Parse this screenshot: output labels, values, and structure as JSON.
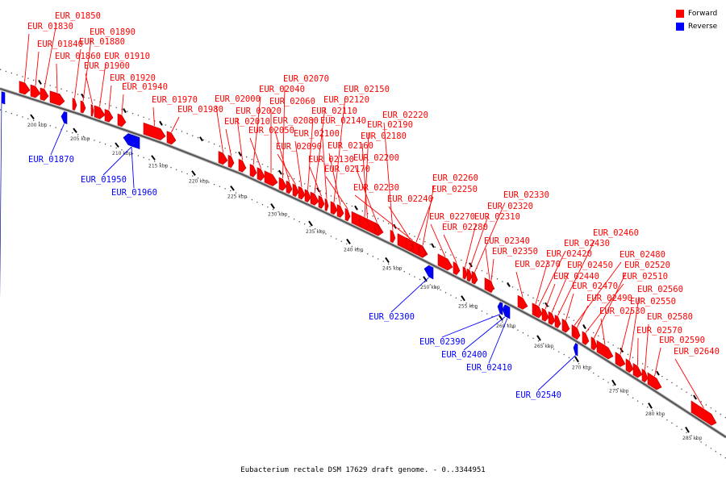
{
  "caption": "Eubacterium rectale DSM 17629 draft genome. - 0..3344951",
  "legend": [
    {
      "label": "Forward",
      "color": "#ff0000"
    },
    {
      "label": "Reverse",
      "color": "#0000ff"
    }
  ],
  "colors": {
    "forward": "#ff0000",
    "reverse": "#0000ff",
    "backbone": "#555555"
  },
  "ticks": [
    "200 kbp",
    "205 kbp",
    "210 kbp",
    "215 kbp",
    "220 kbp",
    "225 kbp",
    "230 kbp",
    "235 kbp",
    "240 kbp",
    "245 kbp",
    "250 kbp",
    "255 kbp",
    "260 kbp",
    "265 kbp",
    "270 kbp",
    "275 kbp",
    "280 kbp",
    "285 kbp"
  ],
  "forward_genes": [
    "EUR_01830",
    "EUR_01840",
    "EUR_01850",
    "EUR_01860",
    "EUR_01880",
    "EUR_01890",
    "EUR_01900",
    "EUR_01910",
    "EUR_01920",
    "EUR_01940",
    "EUR_01970",
    "EUR_01980",
    "EUR_02000",
    "EUR_02010",
    "EUR_02020",
    "EUR_02040",
    "EUR_02050",
    "EUR_02060",
    "EUR_02070",
    "EUR_02080",
    "EUR_02090",
    "EUR_02100",
    "EUR_02110",
    "EUR_02120",
    "EUR_02130",
    "EUR_02140",
    "EUR_02150",
    "EUR_02160",
    "EUR_02170",
    "EUR_02180",
    "EUR_02190",
    "EUR_02200",
    "EUR_02220",
    "EUR_02230",
    "EUR_02240",
    "EUR_02250",
    "EUR_02260",
    "EUR_02270",
    "EUR_02280",
    "EUR_02310",
    "EUR_02320",
    "EUR_02330",
    "EUR_02340",
    "EUR_02350",
    "EUR_02370",
    "EUR_02420",
    "EUR_02430",
    "EUR_02440",
    "EUR_02450",
    "EUR_02460",
    "EUR_02470",
    "EUR_02480",
    "EUR_02490",
    "EUR_02510",
    "EUR_02520",
    "EUR_02530",
    "EUR_02550",
    "EUR_02560",
    "EUR_02570",
    "EUR_02580",
    "EUR_02590",
    "EUR_02640"
  ],
  "reverse_genes": [
    "EUR_01870",
    "EUR_01950",
    "EUR_01960",
    "EUR_02300",
    "EUR_02390",
    "EUR_02400",
    "EUR_02410",
    "EUR_02540"
  ]
}
